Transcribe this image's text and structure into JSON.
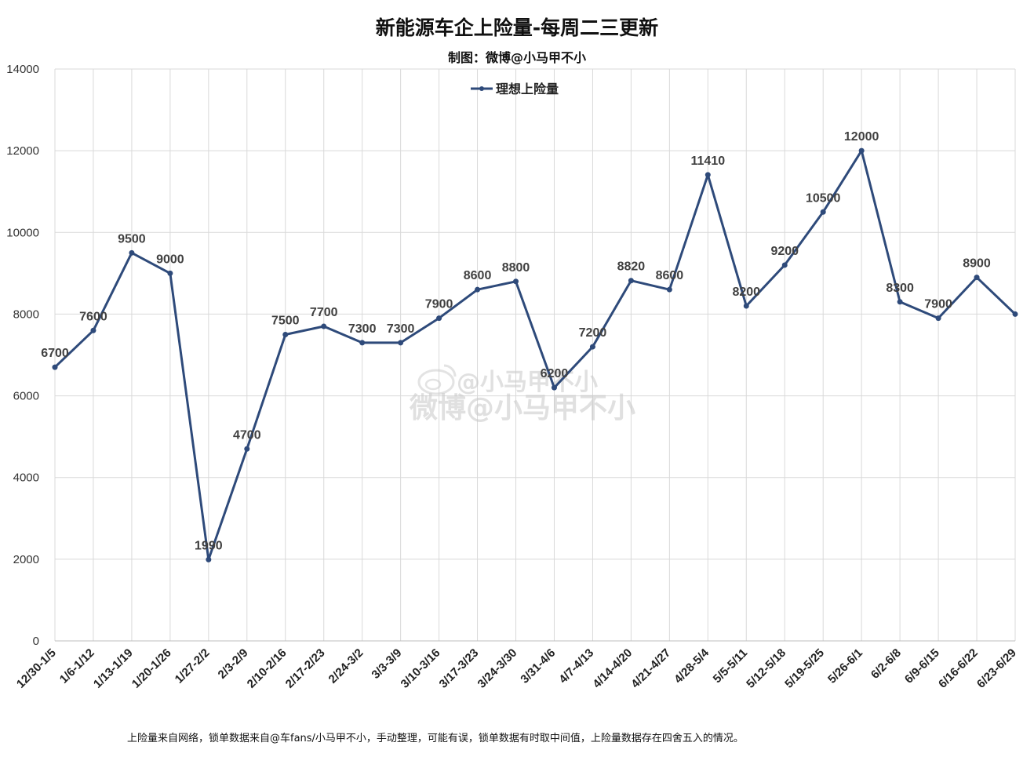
{
  "chart_data": {
    "type": "line",
    "title": "新能源车企上险量-每周二三更新",
    "subtitle": "制图：微博@小马甲不小",
    "footnote": "上险量来自网络，锁单数据来自@车fans/小马甲不小，手动整理，可能有误，锁单数据有时取中间值，上险量数据存在四舍五入的情况。",
    "watermark_handle": "@小马甲不小",
    "watermark_text": "微博@小马甲不小",
    "ylim": [
      0,
      14000
    ],
    "yticks": [
      0,
      2000,
      4000,
      6000,
      8000,
      10000,
      12000,
      14000
    ],
    "legend_position": "top-center",
    "grid": true,
    "categories": [
      "12/30-1/5",
      "1/6-1/12",
      "1/13-1/19",
      "1/20-1/26",
      "1/27-2/2",
      "2/3-2/9",
      "2/10-2/16",
      "2/17-2/23",
      "2/24-3/2",
      "3/3-3/9",
      "3/10-3/16",
      "3/17-3/23",
      "3/24-3/30",
      "3/31-4/6",
      "4/7-4/13",
      "4/14-4/20",
      "4/21-4/27",
      "4/28-5/4",
      "5/5-5/11",
      "5/12-5/18",
      "5/19-5/25",
      "5/26-6/1",
      "6/2-6/8",
      "6/9-6/15",
      "6/16-6/22",
      "6/23-6/29"
    ],
    "series": [
      {
        "name": "理想上险量",
        "color": "#2e4a7a",
        "values": [
          6700,
          7600,
          9500,
          9000,
          1990,
          4700,
          7500,
          7700,
          7300,
          7300,
          7900,
          8600,
          8800,
          6200,
          7200,
          8820,
          8600,
          11410,
          8200,
          9200,
          10500,
          12000,
          8300,
          7900,
          8900,
          8000
        ],
        "labels": [
          "6700",
          "7600",
          "9500",
          "9000",
          "1990",
          "4700",
          "7500",
          "7700",
          "7300",
          "7300",
          "7900",
          "8600",
          "8800",
          "6200",
          "7200",
          "8820",
          "8600",
          "11410",
          "8200",
          "9200",
          "10500",
          "12000",
          "8300",
          "7900",
          "8900",
          ""
        ]
      }
    ]
  }
}
